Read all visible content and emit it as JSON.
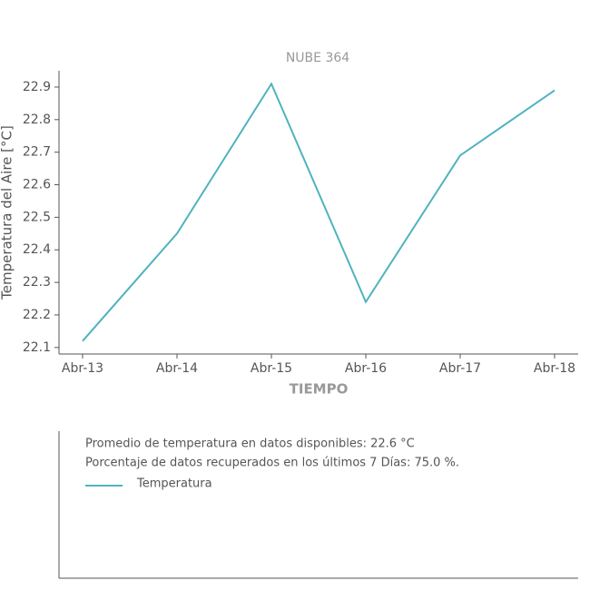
{
  "chart_data": {
    "type": "line",
    "title": "NUBE 364",
    "x_label": "TIEMPO",
    "y_label": "Temperatura del Aire [°C]",
    "categories": [
      "Abr-13",
      "Abr-14",
      "Abr-15",
      "Abr-16",
      "Abr-17",
      "Abr-18"
    ],
    "series": [
      {
        "name": "Temperatura",
        "color": "#4fb3bf",
        "values": [
          22.12,
          22.45,
          22.91,
          22.24,
          22.69,
          22.89
        ]
      }
    ],
    "ylim": [
      22.08,
      22.95
    ],
    "yticks": [
      22.1,
      22.2,
      22.3,
      22.4,
      22.5,
      22.6,
      22.7,
      22.8,
      22.9
    ],
    "annotations": [
      "Promedio de temperatura en datos disponibles: 22.6 °C",
      "Porcentaje de datos recuperados en los últimos 7 Días: 75.0 %."
    ]
  }
}
